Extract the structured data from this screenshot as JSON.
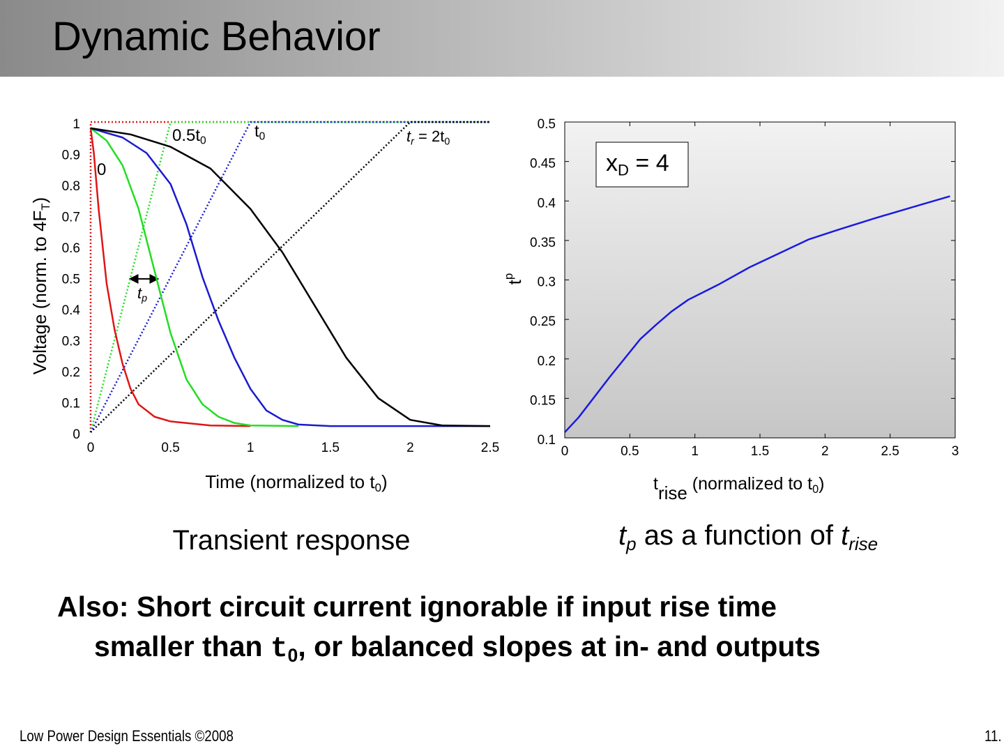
{
  "title": "Dynamic Behavior",
  "chart_data": [
    {
      "type": "line",
      "xlabel": [
        "Time (normalized to t",
        "0",
        ")"
      ],
      "ylabel": [
        "Voltage (norm. to 4F",
        "T",
        ")"
      ],
      "xlim": [
        0,
        2.5
      ],
      "ylim": [
        0,
        1
      ],
      "xticks": [
        0,
        0.5,
        1,
        1.5,
        2,
        2.5
      ],
      "yticks": [
        0,
        0.1,
        0.2,
        0.3,
        0.4,
        0.5,
        0.6,
        0.7,
        0.8,
        0.9,
        1
      ],
      "series": [
        {
          "color": "#e01414",
          "style": "dotted",
          "x": [
            0,
            0,
            2.5
          ],
          "values": [
            0,
            1,
            1
          ]
        },
        {
          "color": "#22dd22",
          "style": "dotted",
          "x": [
            0,
            0.5,
            2.5
          ],
          "values": [
            0,
            1,
            1
          ]
        },
        {
          "color": "#1a1ad0",
          "style": "dotted",
          "x": [
            0,
            1,
            2.5
          ],
          "values": [
            0,
            1,
            1
          ]
        },
        {
          "color": "#000000",
          "style": "dotted",
          "x": [
            0,
            2,
            2.5
          ],
          "values": [
            0,
            1,
            1
          ]
        },
        {
          "color": "#e01414",
          "style": "solid",
          "x": [
            0,
            0.02,
            0.05,
            0.1,
            0.15,
            0.2,
            0.25,
            0.3,
            0.4,
            0.5,
            0.75,
            1.0
          ],
          "values": [
            0.98,
            0.9,
            0.72,
            0.48,
            0.33,
            0.22,
            0.14,
            0.09,
            0.05,
            0.035,
            0.022,
            0.02
          ]
        },
        {
          "color": "#22dd22",
          "style": "solid",
          "x": [
            0,
            0.1,
            0.2,
            0.3,
            0.35,
            0.4,
            0.45,
            0.5,
            0.6,
            0.7,
            0.8,
            0.9,
            1.0,
            1.3
          ],
          "values": [
            0.98,
            0.94,
            0.86,
            0.72,
            0.62,
            0.52,
            0.42,
            0.32,
            0.17,
            0.09,
            0.05,
            0.03,
            0.022,
            0.02
          ]
        },
        {
          "color": "#1a1ad0",
          "style": "solid",
          "x": [
            0,
            0.2,
            0.35,
            0.5,
            0.6,
            0.7,
            0.8,
            0.9,
            1.0,
            1.1,
            1.2,
            1.3,
            1.5,
            2.5
          ],
          "values": [
            0.98,
            0.95,
            0.9,
            0.8,
            0.67,
            0.5,
            0.36,
            0.24,
            0.14,
            0.07,
            0.04,
            0.025,
            0.02,
            0.02
          ]
        },
        {
          "color": "#000000",
          "style": "solid",
          "x": [
            0,
            0.25,
            0.5,
            0.75,
            1.0,
            1.2,
            1.4,
            1.6,
            1.8,
            2.0,
            2.2,
            2.5
          ],
          "values": [
            0.98,
            0.96,
            0.92,
            0.85,
            0.72,
            0.58,
            0.41,
            0.24,
            0.11,
            0.04,
            0.022,
            0.02
          ]
        }
      ],
      "annotations": [
        [
          "0"
        ],
        [
          "0.5t",
          "0"
        ],
        [
          "t",
          "0"
        ],
        [
          "t",
          "r",
          " = 2t",
          "0"
        ],
        [
          "t",
          "p"
        ]
      ]
    },
    {
      "type": "line",
      "xlabel": [
        "t",
        "rise",
        " (normalized to t",
        "0",
        ")"
      ],
      "ylabel": [
        "t",
        "p"
      ],
      "box_label": [
        "x",
        "D",
        " = 4"
      ],
      "xlim": [
        0,
        3
      ],
      "ylim": [
        0.1,
        0.5
      ],
      "xticks": [
        0,
        0.5,
        1,
        1.5,
        2,
        2.5,
        3
      ],
      "yticks": [
        0.1,
        0.15,
        0.2,
        0.25,
        0.3,
        0.35,
        0.4,
        0.45,
        0.5
      ],
      "series": [
        {
          "color": "#1a1ae0",
          "style": "solid",
          "x": [
            0,
            0.107,
            0.35,
            0.58,
            0.7,
            0.82,
            0.95,
            1.18,
            1.42,
            1.87,
            2.09,
            2.38,
            2.73,
            2.96
          ],
          "values": [
            0.107,
            0.126,
            0.178,
            0.225,
            0.243,
            0.26,
            0.275,
            0.294,
            0.316,
            0.351,
            0.363,
            0.378,
            0.395,
            0.406
          ]
        }
      ]
    }
  ],
  "captions": [
    [
      "Transient response"
    ],
    [
      "t",
      "p",
      " as a function of ",
      "t",
      "rise"
    ]
  ],
  "note": {
    "line1": "Also: Short circuit current ignorable if input rise time",
    "line2": [
      "smaller than ",
      "t",
      "0",
      ", or balanced slopes at in- and outputs"
    ]
  },
  "footer": {
    "left": "Low Power Design Essentials ©2008",
    "right": "11."
  }
}
